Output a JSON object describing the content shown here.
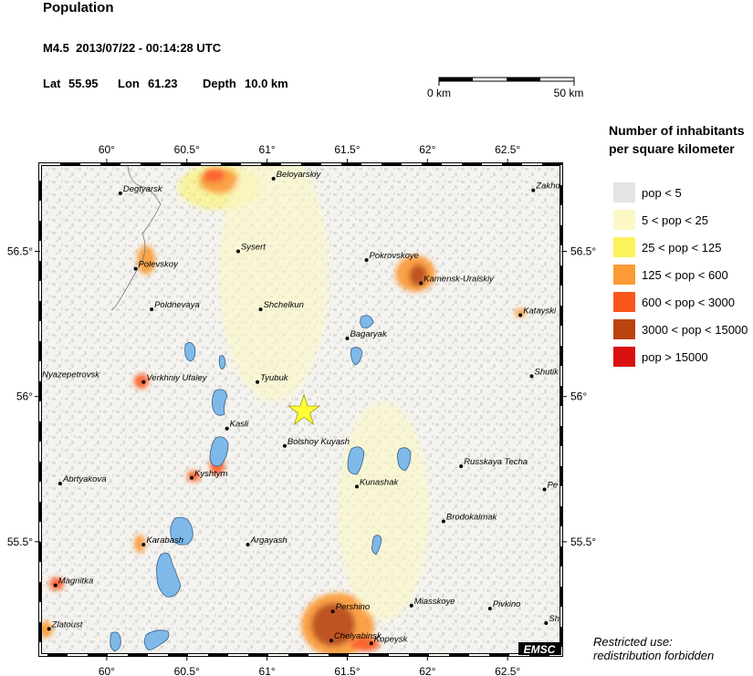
{
  "header": {
    "title": "Population",
    "event": "M4.5  2013/07/22 - 00:14:28 UTC",
    "lat_label": "Lat",
    "lat": 55.95,
    "lon_label": "Lon",
    "lon": 61.23,
    "depth_label": "Depth",
    "depth": {
      "value": 10.0,
      "label": "10.0 km"
    }
  },
  "scale_bar": {
    "start": "0 km",
    "end": "50 km"
  },
  "map": {
    "lonlim": [
      59.585,
      62.835
    ],
    "latlim": [
      55.11,
      56.8
    ],
    "xticks": [
      {
        "value": 60,
        "label": "60°"
      },
      {
        "value": 60.5,
        "label": "60.5°"
      },
      {
        "value": 61,
        "label": "61°"
      },
      {
        "value": 61.5,
        "label": "61.5°"
      },
      {
        "value": 62,
        "label": "62°"
      },
      {
        "value": 62.5,
        "label": "62.5°"
      }
    ],
    "yticks": [
      {
        "value": 56.5,
        "label": "56.5°"
      },
      {
        "value": 56,
        "label": "56°"
      },
      {
        "value": 55.5,
        "label": "55.5°"
      }
    ],
    "cities": [
      {
        "name": "Degtyarsk",
        "lon": 60.085,
        "lat": 56.7
      },
      {
        "name": "Beloyarskiy",
        "lon": 61.04,
        "lat": 56.75
      },
      {
        "name": "Zakho",
        "lon": 62.66,
        "lat": 56.71
      },
      {
        "name": "Sysert",
        "lon": 60.82,
        "lat": 56.5
      },
      {
        "name": "Polevskoy",
        "lon": 60.18,
        "lat": 56.44
      },
      {
        "name": "Pokrovskoye",
        "lon": 61.62,
        "lat": 56.47
      },
      {
        "name": "Kamensk-Uralskiy",
        "lon": 61.96,
        "lat": 56.39
      },
      {
        "name": "Poldnevaya",
        "lon": 60.28,
        "lat": 56.3
      },
      {
        "name": "Shchelkun",
        "lon": 60.96,
        "lat": 56.3
      },
      {
        "name": "Katayski",
        "lon": 62.58,
        "lat": 56.28
      },
      {
        "name": "Bagaryak",
        "lon": 61.5,
        "lat": 56.2
      },
      {
        "name": "Nyazepetrovsk",
        "lon": 59.58,
        "lat": 56.06
      },
      {
        "name": "Verkhniy Ufaley",
        "lon": 60.23,
        "lat": 56.05
      },
      {
        "name": "Tyubuk",
        "lon": 60.94,
        "lat": 56.05
      },
      {
        "name": "Shutik",
        "lon": 62.65,
        "lat": 56.07
      },
      {
        "name": "Kasli",
        "lon": 60.75,
        "lat": 55.89
      },
      {
        "name": "Bolshoy Kuyash",
        "lon": 61.11,
        "lat": 55.83
      },
      {
        "name": "Abrtyakova",
        "lon": 59.71,
        "lat": 55.7
      },
      {
        "name": "Kyshtym",
        "lon": 60.53,
        "lat": 55.72
      },
      {
        "name": "Kunashak",
        "lon": 61.56,
        "lat": 55.69
      },
      {
        "name": "Russkaya Techa",
        "lon": 62.21,
        "lat": 55.76
      },
      {
        "name": "Pe",
        "lon": 62.73,
        "lat": 55.68
      },
      {
        "name": "Brodokalmak",
        "lon": 62.1,
        "lat": 55.57
      },
      {
        "name": "Karabash",
        "lon": 60.23,
        "lat": 55.49
      },
      {
        "name": "Argayash",
        "lon": 60.88,
        "lat": 55.49
      },
      {
        "name": "Magnitka",
        "lon": 59.68,
        "lat": 55.35
      },
      {
        "name": "Miasskoye",
        "lon": 61.9,
        "lat": 55.28
      },
      {
        "name": "Pivkino",
        "lon": 62.39,
        "lat": 55.27
      },
      {
        "name": "Pershino",
        "lon": 61.41,
        "lat": 55.26
      },
      {
        "name": "Zlatoust",
        "lon": 59.64,
        "lat": 55.2
      },
      {
        "name": "Sh",
        "lon": 62.74,
        "lat": 55.22
      },
      {
        "name": "Chelyabinsk",
        "lon": 61.4,
        "lat": 55.16
      },
      {
        "name": "Kopeysk",
        "lon": 61.65,
        "lat": 55.15
      }
    ],
    "brand": "EMSC",
    "note": [
      "Restricted use:",
      "redistribution forbidden"
    ]
  },
  "legend": {
    "title": [
      "Number of inhabitants",
      "per square kilometer"
    ],
    "items": [
      {
        "label": "pop < 5",
        "color": "#e4e4e2"
      },
      {
        "label": "5 < pop < 25",
        "color": "#fcf8c6"
      },
      {
        "label": "25 < pop < 125",
        "color": "#fbf35c"
      },
      {
        "label": "125 < pop < 600",
        "color": "#fb9a36"
      },
      {
        "label": "600 < pop < 3000",
        "color": "#fc561c"
      },
      {
        "label": "3000 < pop < 15000",
        "color": "#b9440f"
      },
      {
        "label": "pop > 15000",
        "color": "#d90f10"
      }
    ]
  }
}
